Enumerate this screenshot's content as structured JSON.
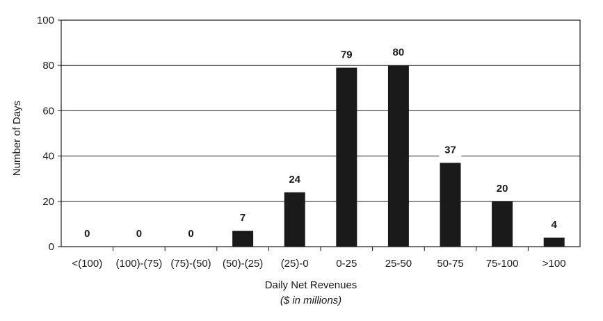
{
  "chart_data": {
    "type": "bar",
    "categories": [
      "<(100)",
      "(100)-(75)",
      "(75)-(50)",
      "(50)-(25)",
      "(25)-0",
      "0-25",
      "25-50",
      "50-75",
      "75-100",
      ">100"
    ],
    "values": [
      0,
      0,
      0,
      7,
      24,
      79,
      80,
      37,
      20,
      4
    ],
    "data_labels": [
      "0",
      "0",
      "0",
      "7",
      "24",
      "79",
      "80",
      "37",
      "20",
      "4"
    ],
    "xlabel": "Daily Net Revenues",
    "xlabel_sub": "($ in millions)",
    "ylabel": "Number of Days",
    "ylim": [
      0,
      100
    ],
    "yticks": [
      0,
      20,
      40,
      60,
      80,
      100
    ],
    "grid": true,
    "bar_color": "#1a1a1a"
  }
}
